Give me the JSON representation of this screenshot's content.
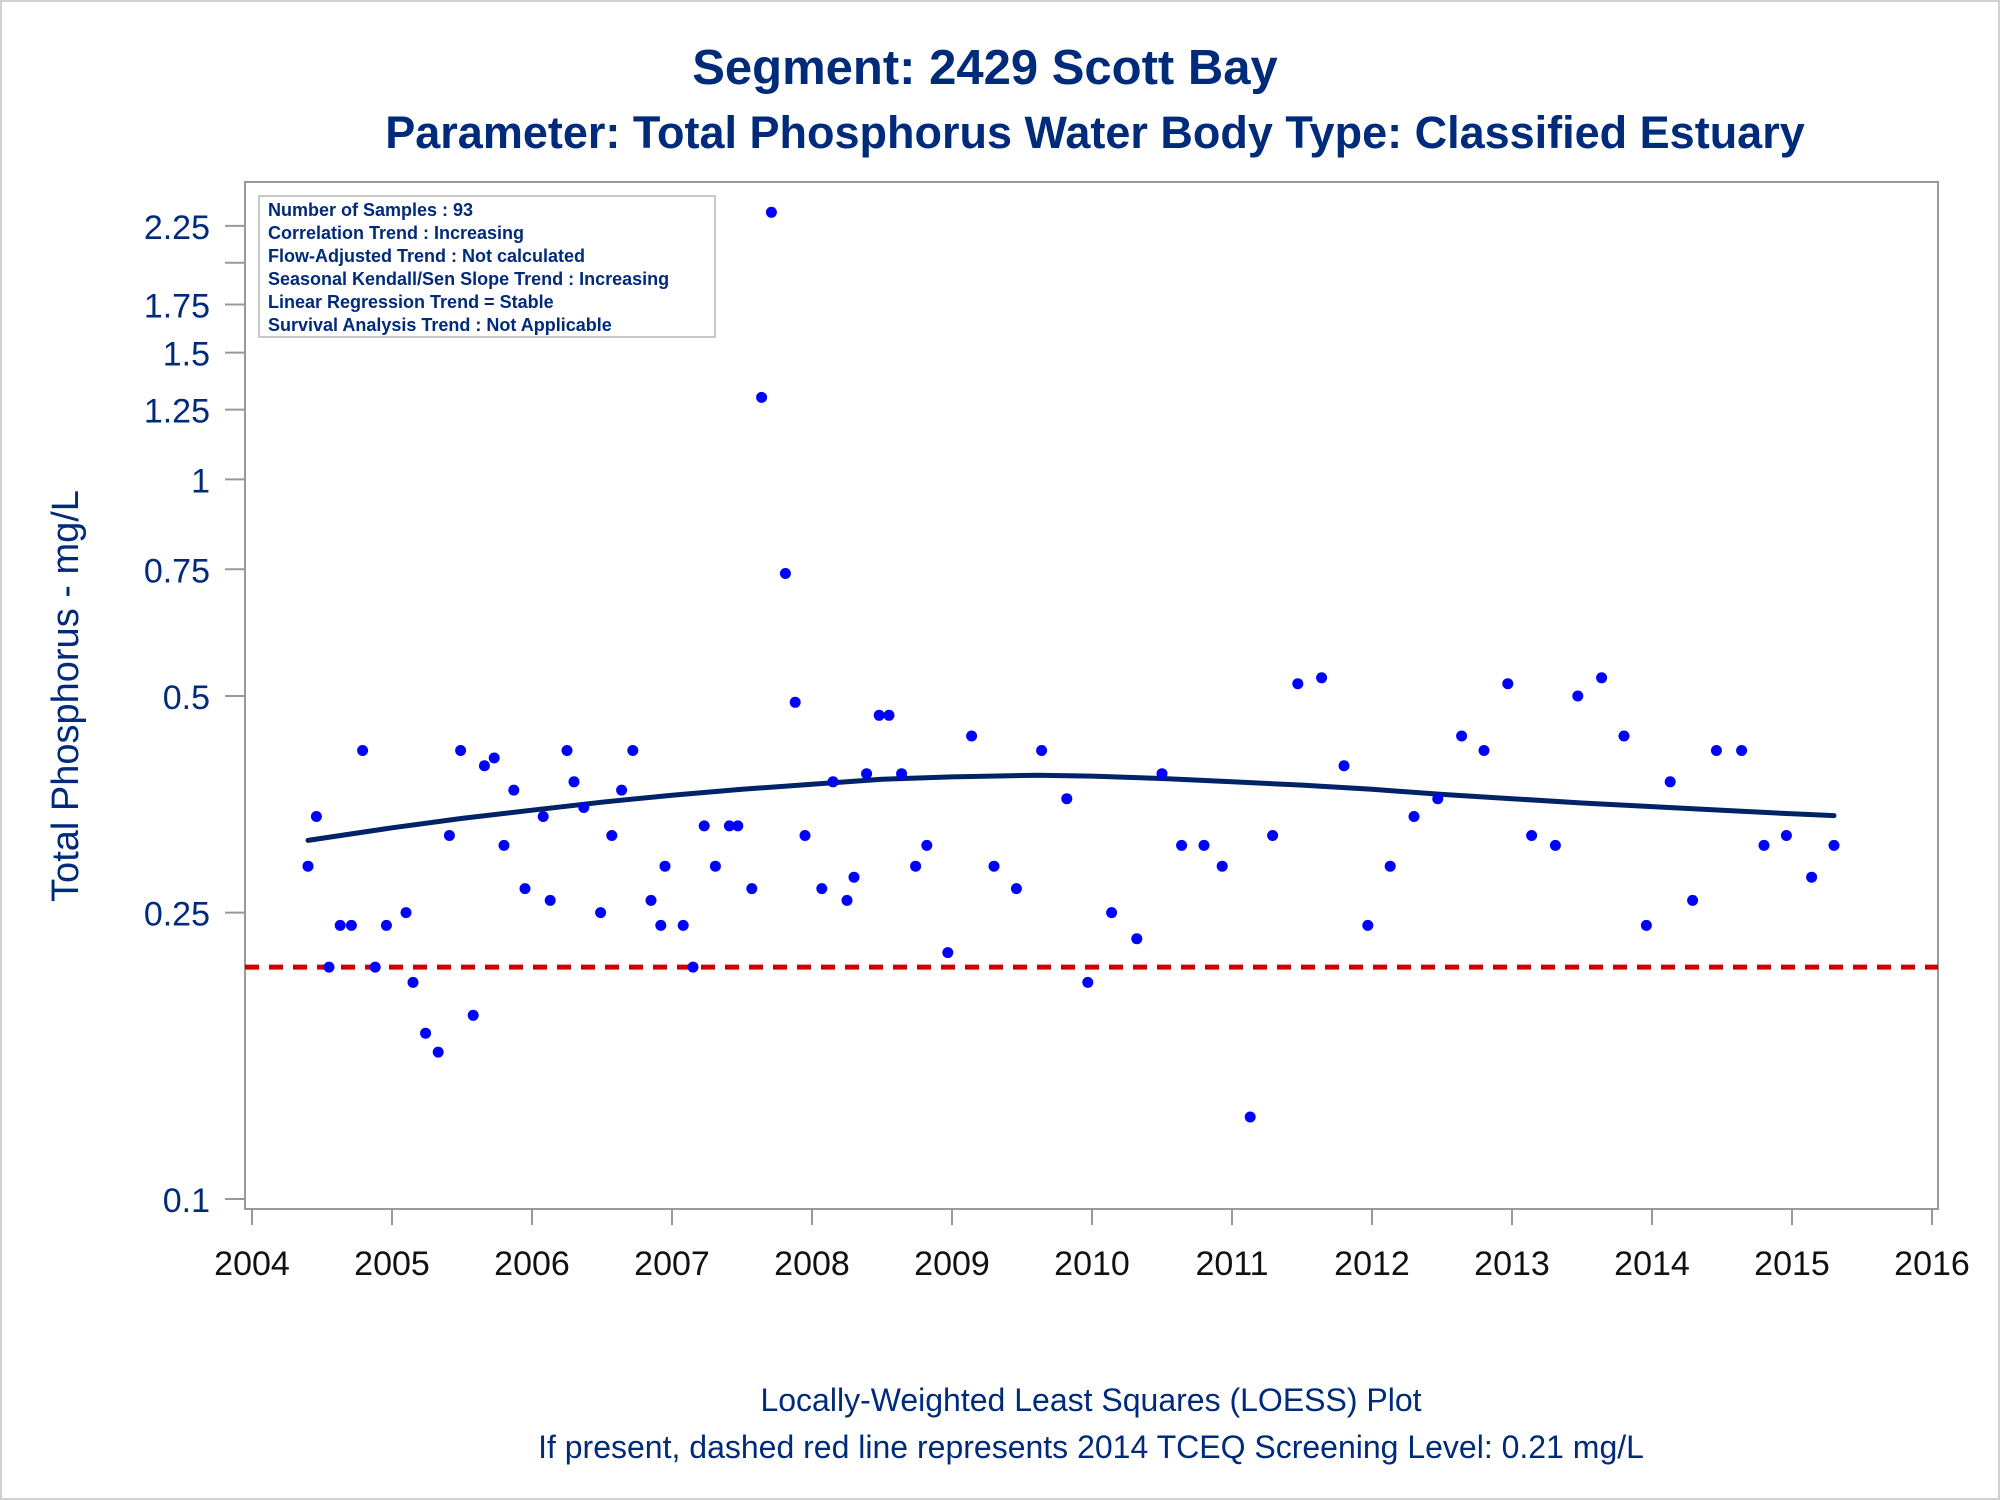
{
  "chart_data": {
    "type": "scatter",
    "title": "Segment: 2429  Scott Bay",
    "subtitle": "Parameter: Total Phosphorus   Water Body Type: Classified Estuary",
    "xlabel": "",
    "ylabel": "Total Phosphorus - mg/L",
    "footnote_1": "Locally-Weighted Least Squares (LOESS) Plot",
    "footnote_2": "If present, dashed red line represents 2014 TCEQ Screening Level: 0.21 mg/L",
    "y_scale": "log",
    "xlim": [
      2004,
      2016
    ],
    "ylim": [
      0.1,
      2.5
    ],
    "x_ticks": [
      "2004",
      "2005",
      "2006",
      "2007",
      "2008",
      "2009",
      "2010",
      "2011",
      "2012",
      "2013",
      "2014",
      "2015",
      "2016"
    ],
    "y_ticks": [
      {
        "label": "0.1",
        "value": 0.1
      },
      {
        "label": "0.25",
        "value": 0.25
      },
      {
        "label": "0.5",
        "value": 0.5
      },
      {
        "label": "0.75",
        "value": 0.75
      },
      {
        "label": "1",
        "value": 1.0
      },
      {
        "label": "1.25",
        "value": 1.25
      },
      {
        "label": "1.5",
        "value": 1.5
      },
      {
        "label": "1.75",
        "value": 1.75
      },
      {
        "label": "",
        "value": 2.0
      },
      {
        "label": "2.25",
        "value": 2.25
      }
    ],
    "grid": false,
    "info_box": [
      "Number of Samples : 93",
      "Correlation Trend : Increasing",
      "Flow-Adjusted Trend : Not calculated",
      "Seasonal Kendall/Sen Slope Trend : Increasing",
      "Linear Regression Trend = Stable",
      "Survival Analysis Trend : Not Applicable"
    ],
    "screening_level": {
      "value": 0.21,
      "color": "#cc0000",
      "style": "dashed"
    },
    "colors": {
      "points": "#0000ff",
      "loess": "#002266",
      "text": "#002a7a",
      "axis": "#999999"
    },
    "points": [
      {
        "x": 2004.4,
        "y": 0.29
      },
      {
        "x": 2004.46,
        "y": 0.34
      },
      {
        "x": 2004.55,
        "y": 0.21
      },
      {
        "x": 2004.63,
        "y": 0.24
      },
      {
        "x": 2004.71,
        "y": 0.24
      },
      {
        "x": 2004.79,
        "y": 0.42
      },
      {
        "x": 2004.88,
        "y": 0.21
      },
      {
        "x": 2004.96,
        "y": 0.24
      },
      {
        "x": 2005.1,
        "y": 0.25
      },
      {
        "x": 2005.15,
        "y": 0.2
      },
      {
        "x": 2005.24,
        "y": 0.17
      },
      {
        "x": 2005.33,
        "y": 0.16
      },
      {
        "x": 2005.41,
        "y": 0.32
      },
      {
        "x": 2005.49,
        "y": 0.42
      },
      {
        "x": 2005.58,
        "y": 0.18
      },
      {
        "x": 2005.66,
        "y": 0.4
      },
      {
        "x": 2005.73,
        "y": 0.41
      },
      {
        "x": 2005.8,
        "y": 0.31
      },
      {
        "x": 2005.87,
        "y": 0.37
      },
      {
        "x": 2005.95,
        "y": 0.27
      },
      {
        "x": 2006.08,
        "y": 0.34
      },
      {
        "x": 2006.13,
        "y": 0.26
      },
      {
        "x": 2006.25,
        "y": 0.42
      },
      {
        "x": 2006.3,
        "y": 0.38
      },
      {
        "x": 2006.37,
        "y": 0.35
      },
      {
        "x": 2006.49,
        "y": 0.25
      },
      {
        "x": 2006.57,
        "y": 0.32
      },
      {
        "x": 2006.64,
        "y": 0.37
      },
      {
        "x": 2006.72,
        "y": 0.42
      },
      {
        "x": 2006.85,
        "y": 0.26
      },
      {
        "x": 2006.92,
        "y": 0.24
      },
      {
        "x": 2006.95,
        "y": 0.29
      },
      {
        "x": 2007.08,
        "y": 0.24
      },
      {
        "x": 2007.15,
        "y": 0.21
      },
      {
        "x": 2007.23,
        "y": 0.33
      },
      {
        "x": 2007.31,
        "y": 0.29
      },
      {
        "x": 2007.41,
        "y": 0.33
      },
      {
        "x": 2007.47,
        "y": 0.33
      },
      {
        "x": 2007.57,
        "y": 0.27
      },
      {
        "x": 2007.64,
        "y": 1.3
      },
      {
        "x": 2007.71,
        "y": 2.35
      },
      {
        "x": 2007.81,
        "y": 0.74
      },
      {
        "x": 2007.88,
        "y": 0.49
      },
      {
        "x": 2007.95,
        "y": 0.32
      },
      {
        "x": 2008.07,
        "y": 0.27
      },
      {
        "x": 2008.15,
        "y": 0.38
      },
      {
        "x": 2008.25,
        "y": 0.26
      },
      {
        "x": 2008.3,
        "y": 0.28
      },
      {
        "x": 2008.39,
        "y": 0.39
      },
      {
        "x": 2008.48,
        "y": 0.47
      },
      {
        "x": 2008.55,
        "y": 0.47
      },
      {
        "x": 2008.64,
        "y": 0.39
      },
      {
        "x": 2008.74,
        "y": 0.29
      },
      {
        "x": 2008.82,
        "y": 0.31
      },
      {
        "x": 2008.97,
        "y": 0.22
      },
      {
        "x": 2009.14,
        "y": 0.44
      },
      {
        "x": 2009.3,
        "y": 0.29
      },
      {
        "x": 2009.46,
        "y": 0.27
      },
      {
        "x": 2009.64,
        "y": 0.42
      },
      {
        "x": 2009.82,
        "y": 0.36
      },
      {
        "x": 2009.97,
        "y": 0.2
      },
      {
        "x": 2010.14,
        "y": 0.25
      },
      {
        "x": 2010.32,
        "y": 0.23
      },
      {
        "x": 2010.5,
        "y": 0.39
      },
      {
        "x": 2010.64,
        "y": 0.31
      },
      {
        "x": 2010.8,
        "y": 0.31
      },
      {
        "x": 2010.93,
        "y": 0.29
      },
      {
        "x": 2011.13,
        "y": 0.13
      },
      {
        "x": 2011.29,
        "y": 0.32
      },
      {
        "x": 2011.47,
        "y": 0.52
      },
      {
        "x": 2011.64,
        "y": 0.53
      },
      {
        "x": 2011.8,
        "y": 0.4
      },
      {
        "x": 2011.97,
        "y": 0.24
      },
      {
        "x": 2012.13,
        "y": 0.29
      },
      {
        "x": 2012.3,
        "y": 0.34
      },
      {
        "x": 2012.47,
        "y": 0.36
      },
      {
        "x": 2012.64,
        "y": 0.44
      },
      {
        "x": 2012.8,
        "y": 0.42
      },
      {
        "x": 2012.97,
        "y": 0.52
      },
      {
        "x": 2013.14,
        "y": 0.32
      },
      {
        "x": 2013.31,
        "y": 0.31
      },
      {
        "x": 2013.47,
        "y": 0.5
      },
      {
        "x": 2013.64,
        "y": 0.53
      },
      {
        "x": 2013.8,
        "y": 0.44
      },
      {
        "x": 2013.96,
        "y": 0.24
      },
      {
        "x": 2014.13,
        "y": 0.38
      },
      {
        "x": 2014.29,
        "y": 0.26
      },
      {
        "x": 2014.46,
        "y": 0.42
      },
      {
        "x": 2014.64,
        "y": 0.42
      },
      {
        "x": 2014.8,
        "y": 0.31
      },
      {
        "x": 2014.96,
        "y": 0.32
      },
      {
        "x": 2015.14,
        "y": 0.28
      },
      {
        "x": 2015.3,
        "y": 0.31
      }
    ],
    "loess": [
      {
        "x": 2004.4,
        "y": 0.315
      },
      {
        "x": 2005.0,
        "y": 0.328
      },
      {
        "x": 2005.5,
        "y": 0.338
      },
      {
        "x": 2006.0,
        "y": 0.347
      },
      {
        "x": 2006.5,
        "y": 0.356
      },
      {
        "x": 2007.0,
        "y": 0.364
      },
      {
        "x": 2007.5,
        "y": 0.371
      },
      {
        "x": 2008.0,
        "y": 0.377
      },
      {
        "x": 2008.5,
        "y": 0.383
      },
      {
        "x": 2009.0,
        "y": 0.386
      },
      {
        "x": 2009.6,
        "y": 0.388
      },
      {
        "x": 2010.0,
        "y": 0.387
      },
      {
        "x": 2010.5,
        "y": 0.384
      },
      {
        "x": 2011.0,
        "y": 0.38
      },
      {
        "x": 2011.5,
        "y": 0.376
      },
      {
        "x": 2012.0,
        "y": 0.371
      },
      {
        "x": 2012.5,
        "y": 0.365
      },
      {
        "x": 2013.0,
        "y": 0.36
      },
      {
        "x": 2013.5,
        "y": 0.355
      },
      {
        "x": 2014.0,
        "y": 0.351
      },
      {
        "x": 2014.5,
        "y": 0.347
      },
      {
        "x": 2015.0,
        "y": 0.343
      },
      {
        "x": 2015.3,
        "y": 0.341
      }
    ]
  }
}
